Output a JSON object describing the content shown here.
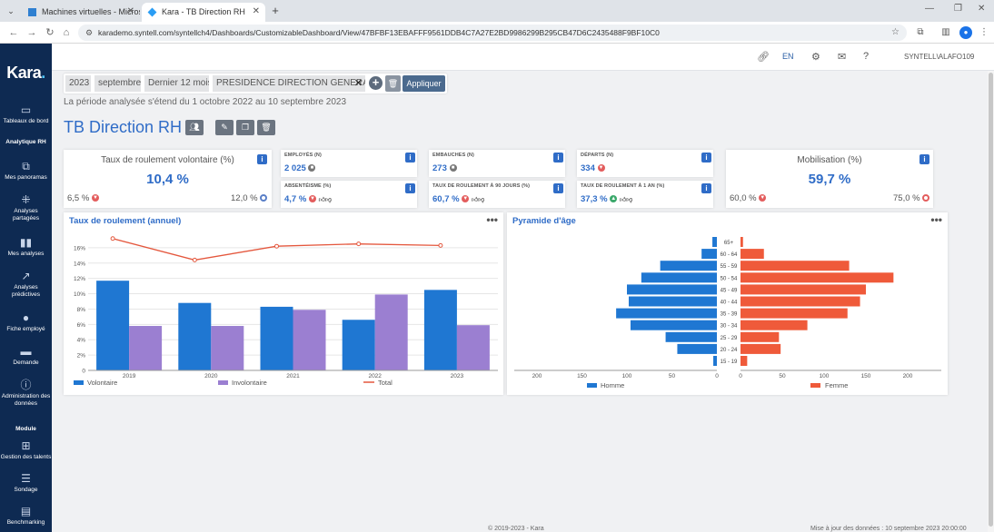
{
  "browser": {
    "tabs": [
      {
        "title": "Machines virtuelles - Microsoft"
      },
      {
        "title": "Kara - TB Direction RH"
      }
    ],
    "url": "karademo.syntell.com/syntellch4/Dashboards/CustomizableDashboard/View/47BFBF13EBAFFF9561DDB4C7A27E2BD9986299B295CB47D6C2435488F9BF10C0"
  },
  "sidebar": {
    "logo": "Kara",
    "items": [
      {
        "label": "Tableaux de bord",
        "icon": "dashboard-icon"
      },
      {
        "section": "Analytique RH"
      },
      {
        "label": "Mes panoramas",
        "icon": "panorama-icon"
      },
      {
        "label": "Analyses partagées",
        "icon": "share-icon"
      },
      {
        "label": "Mes analyses",
        "icon": "bar-chart-icon"
      },
      {
        "label": "Analyses prédictives",
        "icon": "trend-icon"
      },
      {
        "label": "Fiche employé",
        "icon": "person-icon"
      },
      {
        "label": "Demande",
        "icon": "request-icon"
      },
      {
        "label": "Administration des données",
        "icon": "info-icon"
      },
      {
        "section": "Module"
      },
      {
        "label": "Gestion des talents",
        "icon": "talent-icon"
      },
      {
        "label": "Sondage",
        "icon": "survey-icon"
      },
      {
        "label": "Benchmarking",
        "icon": "benchmark-icon"
      }
    ]
  },
  "header": {
    "lang": "EN",
    "user": "SYNTELL\\ALAFO109"
  },
  "filters": {
    "year": "2023",
    "month": "septembre",
    "range": "Dernier 12 mois",
    "department": "PRESIDENCE DIRECTION GENERALE",
    "apply": "Appliquer",
    "period_text": "La période analysée s'étend du 1 octobre 2022 au 10 septembre 2023"
  },
  "title": "TB Direction RH",
  "kpis": {
    "voluntary_turnover": {
      "label": "Taux de roulement volontaire (%)",
      "value": "10,4 %",
      "low": "6,5 %",
      "high": "12,0 %"
    },
    "employees": {
      "label": "EMPLOYÉS (N)",
      "value": "2 025"
    },
    "hires": {
      "label": "EMBAUCHES (N)",
      "value": "273"
    },
    "departures": {
      "label": "DÉPARTS (N)",
      "value": "334"
    },
    "absenteeism": {
      "label": "ABSENTÉISME (%)",
      "value": "4,7 %"
    },
    "turnover_90": {
      "label": "TAUX DE ROULEMENT À 90 JOURS (%)",
      "value": "60,7 %"
    },
    "turnover_1y": {
      "label": "TAUX DE ROULEMENT À 1 AN (%)",
      "value": "37,3 %"
    },
    "mobilisation": {
      "label": "Mobilisation (%)",
      "value": "59,7 %",
      "low": "60,0 %",
      "high": "75,0 %"
    }
  },
  "chart_data": [
    {
      "type": "bar",
      "title": "Taux de roulement (annuel)",
      "categories": [
        "2019",
        "2020",
        "2021",
        "2022",
        "2023"
      ],
      "series": [
        {
          "name": "Volontaire",
          "values": [
            11.7,
            8.8,
            8.3,
            6.6,
            10.5
          ],
          "color": "#1f77d2"
        },
        {
          "name": "Involontaire",
          "values": [
            5.8,
            5.8,
            7.9,
            9.9,
            5.9
          ],
          "color": "#9b7fd1"
        },
        {
          "name": "Total",
          "type": "line",
          "values": [
            17.2,
            14.4,
            16.2,
            16.5,
            16.3
          ],
          "color": "#e4573d"
        }
      ],
      "yticks": [
        "0",
        "2%",
        "4%",
        "6%",
        "8%",
        "10%",
        "12%",
        "14%",
        "16%"
      ],
      "ylim": [
        0,
        18
      ]
    },
    {
      "type": "bar",
      "title": "Pyramide d'âge",
      "categories": [
        "65+",
        "60 - 64",
        "55 - 59",
        "50 - 54",
        "45 - 49",
        "40 - 44",
        "35 - 39",
        "30 - 34",
        "25 - 29",
        "20 - 24",
        "15 - 19"
      ],
      "series": [
        {
          "name": "Homme",
          "values": [
            5,
            17,
            63,
            84,
            100,
            98,
            112,
            96,
            57,
            44,
            4
          ],
          "color": "#1f77d2"
        },
        {
          "name": "Femme",
          "values": [
            3,
            28,
            130,
            183,
            150,
            143,
            128,
            80,
            46,
            48,
            8
          ],
          "color": "#ef5a3a"
        }
      ],
      "xticks_left": [
        "200",
        "150",
        "100",
        "50",
        "0"
      ],
      "xticks_right": [
        "0",
        "50",
        "100",
        "150",
        "200"
      ],
      "xlim": [
        0,
        200
      ]
    }
  ],
  "footer": {
    "copyright": "© 2019-2023 - Kara",
    "updated": "Mise à jour des données : 10 septembre 2023 20:00:00"
  }
}
